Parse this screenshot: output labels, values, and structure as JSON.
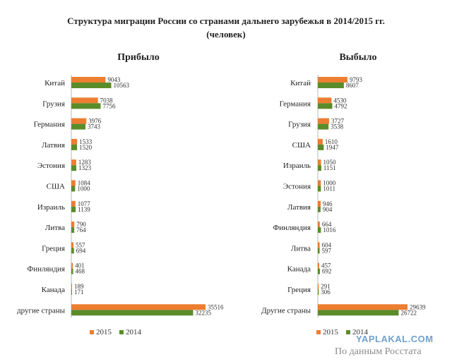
{
  "title_line1": "Структура миграции России со странами дальнего зарубежья в 2014/2015 гг.",
  "title_line2": "(человек)",
  "colors": {
    "2015": "#ed7d31",
    "2014": "#5b8c2a"
  },
  "watermark": "YAPLAKAL.COM",
  "source": "По данным Росстата",
  "chart_data": [
    {
      "type": "bar",
      "orientation": "horizontal",
      "title": "Прибыло",
      "categories": [
        "Китай",
        "Грузия",
        "Германия",
        "Латвия",
        "Эстония",
        "США",
        "Израиль",
        "Литва",
        "Греция",
        "Финляндия",
        "Канада",
        "другие страны"
      ],
      "series": [
        {
          "name": "2015",
          "values": [
            9043,
            7038,
            3976,
            1533,
            1283,
            1084,
            1077,
            790,
            557,
            401,
            189,
            35516
          ]
        },
        {
          "name": "2014",
          "values": [
            10563,
            7756,
            3743,
            1520,
            1323,
            1000,
            1139,
            764,
            694,
            468,
            171,
            32235
          ]
        }
      ],
      "legend": [
        "2015",
        "2014"
      ],
      "legend_position": "bottom",
      "grid": false
    },
    {
      "type": "bar",
      "orientation": "horizontal",
      "title": "Выбыло",
      "categories": [
        "Китай",
        "Германия",
        "Грузия",
        "США",
        "Израиль",
        "Эстония",
        "Латвия",
        "Финляндия",
        "Литва",
        "Канада",
        "Греция",
        "Другие страны"
      ],
      "series": [
        {
          "name": "2015",
          "values": [
            9793,
            4530,
            3727,
            1610,
            1050,
            1000,
            946,
            664,
            604,
            457,
            291,
            29639
          ]
        },
        {
          "name": "2014",
          "values": [
            8607,
            4792,
            3538,
            1947,
            1151,
            1011,
            904,
            1016,
            597,
            692,
            306,
            26722
          ]
        }
      ],
      "legend": [
        "2015",
        "2014"
      ],
      "legend_position": "bottom",
      "grid": false
    }
  ]
}
